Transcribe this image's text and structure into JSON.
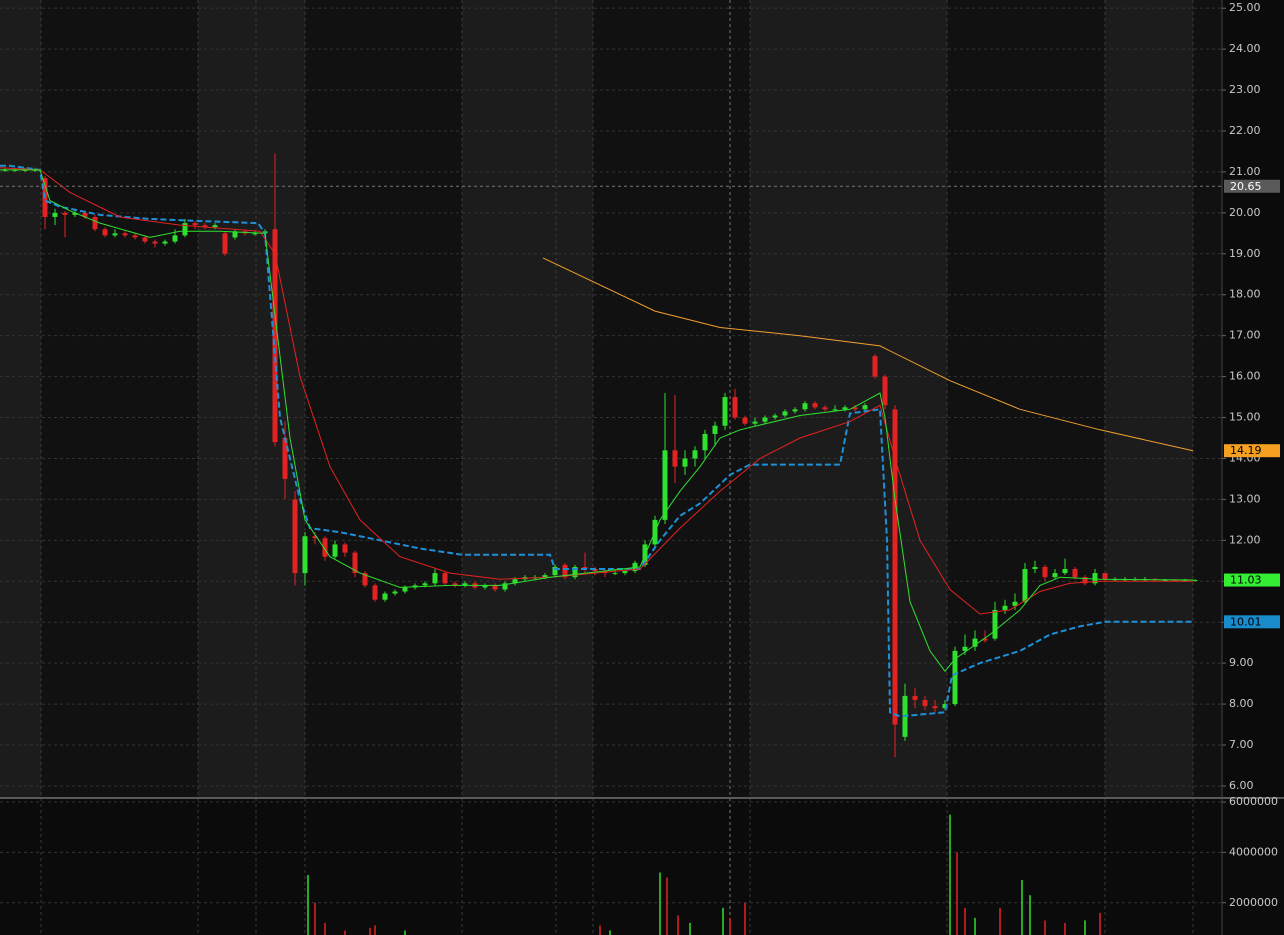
{
  "chart_data": [
    {
      "type": "candlestick",
      "up_color": "#2fe02f",
      "down_color": "#e52222",
      "xlim": [
        -0.5,
        121.7
      ],
      "ylim": [
        5.73,
        25.2
      ],
      "yticks": [
        {
          "value": 6,
          "label": "6.00"
        },
        {
          "value": 7,
          "label": "7.00"
        },
        {
          "value": 8,
          "label": "8.00"
        },
        {
          "value": 9,
          "label": "9.00"
        },
        {
          "value": 10,
          "label": "10.00"
        },
        {
          "value": 11,
          "label": "11.00"
        },
        {
          "value": 12,
          "label": "12.00"
        },
        {
          "value": 13,
          "label": "13.00"
        },
        {
          "value": 14,
          "label": "14.00"
        },
        {
          "value": 15,
          "label": "15.00"
        },
        {
          "value": 16,
          "label": "16.00"
        },
        {
          "value": 17,
          "label": "17.00"
        },
        {
          "value": 18,
          "label": "18.00"
        },
        {
          "value": 19,
          "label": "19.00"
        },
        {
          "value": 20,
          "label": "20.00"
        },
        {
          "value": 21,
          "label": "21.00"
        },
        {
          "value": 22,
          "label": "22.00"
        },
        {
          "value": 23,
          "label": "23.00"
        },
        {
          "value": 24,
          "label": "24.00"
        },
        {
          "value": 25,
          "label": "25.00"
        }
      ],
      "grid": true,
      "ohlc": [
        [
          21.05,
          21.1,
          21.0,
          21.05
        ],
        [
          21.05,
          21.1,
          21.0,
          21.05
        ],
        [
          21.05,
          21.1,
          21.0,
          21.05
        ],
        [
          21.05,
          21.1,
          21.0,
          21.05
        ],
        [
          20.85,
          20.9,
          19.6,
          19.9
        ],
        [
          19.9,
          20.1,
          19.7,
          20.0
        ],
        [
          20.0,
          20.05,
          19.4,
          19.95
        ],
        [
          19.95,
          20.1,
          19.9,
          20.0
        ],
        [
          20.0,
          20.05,
          19.85,
          19.9
        ],
        [
          19.9,
          19.95,
          19.55,
          19.6
        ],
        [
          19.6,
          19.65,
          19.4,
          19.45
        ],
        [
          19.45,
          19.6,
          19.4,
          19.5
        ],
        [
          19.5,
          19.55,
          19.4,
          19.45
        ],
        [
          19.45,
          19.5,
          19.35,
          19.4
        ],
        [
          19.4,
          19.45,
          19.25,
          19.3
        ],
        [
          19.3,
          19.35,
          19.15,
          19.25
        ],
        [
          19.25,
          19.35,
          19.2,
          19.3
        ],
        [
          19.3,
          19.6,
          19.25,
          19.45
        ],
        [
          19.45,
          19.85,
          19.4,
          19.75
        ],
        [
          19.75,
          19.8,
          19.6,
          19.7
        ],
        [
          19.7,
          19.75,
          19.6,
          19.65
        ],
        [
          19.65,
          19.75,
          19.6,
          19.7
        ],
        [
          19.5,
          19.55,
          18.95,
          19.0
        ],
        [
          19.4,
          19.6,
          19.35,
          19.55
        ],
        [
          19.55,
          19.6,
          19.45,
          19.5
        ],
        [
          19.5,
          19.55,
          19.45,
          19.5
        ],
        [
          19.5,
          19.6,
          19.45,
          19.55
        ],
        [
          19.6,
          21.45,
          14.3,
          14.4
        ],
        [
          14.5,
          14.9,
          13.0,
          13.5
        ],
        [
          13.0,
          13.2,
          10.9,
          11.2
        ],
        [
          11.2,
          12.2,
          10.9,
          12.1
        ],
        [
          12.1,
          12.2,
          11.9,
          12.05
        ],
        [
          12.05,
          12.1,
          11.5,
          11.6
        ],
        [
          11.6,
          12.0,
          11.55,
          11.9
        ],
        [
          11.9,
          11.95,
          11.6,
          11.7
        ],
        [
          11.7,
          11.75,
          11.1,
          11.2
        ],
        [
          11.2,
          11.25,
          10.85,
          10.9
        ],
        [
          10.9,
          10.95,
          10.5,
          10.55
        ],
        [
          10.55,
          10.75,
          10.5,
          10.7
        ],
        [
          10.7,
          10.8,
          10.65,
          10.75
        ],
        [
          10.75,
          10.9,
          10.7,
          10.85
        ],
        [
          10.85,
          10.95,
          10.8,
          10.9
        ],
        [
          10.9,
          11.0,
          10.85,
          10.95
        ],
        [
          10.95,
          11.3,
          10.9,
          11.2
        ],
        [
          11.2,
          11.25,
          10.9,
          10.95
        ],
        [
          10.95,
          11.0,
          10.85,
          10.9
        ],
        [
          10.9,
          11.0,
          10.85,
          10.95
        ],
        [
          10.95,
          11.0,
          10.8,
          10.85
        ],
        [
          10.85,
          10.95,
          10.8,
          10.9
        ],
        [
          10.9,
          10.95,
          10.75,
          10.8
        ],
        [
          10.8,
          11.0,
          10.75,
          10.95
        ],
        [
          10.95,
          11.1,
          10.9,
          11.05
        ],
        [
          11.05,
          11.15,
          11.0,
          11.1
        ],
        [
          11.1,
          11.15,
          11.05,
          11.1
        ],
        [
          11.1,
          11.2,
          11.05,
          11.15
        ],
        [
          11.15,
          11.4,
          11.1,
          11.35
        ],
        [
          11.4,
          11.45,
          11.05,
          11.1
        ],
        [
          11.1,
          11.4,
          11.05,
          11.35
        ],
        [
          11.35,
          11.7,
          11.2,
          11.3
        ],
        [
          11.3,
          11.35,
          11.15,
          11.25
        ],
        [
          11.25,
          11.3,
          11.1,
          11.2
        ],
        [
          11.2,
          11.3,
          11.15,
          11.2
        ],
        [
          11.2,
          11.3,
          11.15,
          11.25
        ],
        [
          11.25,
          11.5,
          11.2,
          11.45
        ],
        [
          11.4,
          12.0,
          11.35,
          11.9
        ],
        [
          11.9,
          12.6,
          11.8,
          12.5
        ],
        [
          12.5,
          15.6,
          12.4,
          14.2
        ],
        [
          14.2,
          15.55,
          13.4,
          13.8
        ],
        [
          13.8,
          14.2,
          13.6,
          14.0
        ],
        [
          14.0,
          14.3,
          13.8,
          14.2
        ],
        [
          14.2,
          14.7,
          14.0,
          14.6
        ],
        [
          14.6,
          14.9,
          14.3,
          14.8
        ],
        [
          14.8,
          15.6,
          14.7,
          15.5
        ],
        [
          15.5,
          15.7,
          14.95,
          15.0
        ],
        [
          15.0,
          15.05,
          14.8,
          14.85
        ],
        [
          14.85,
          15.0,
          14.8,
          14.9
        ],
        [
          14.9,
          15.05,
          14.85,
          15.0
        ],
        [
          15.0,
          15.1,
          14.95,
          15.05
        ],
        [
          15.05,
          15.2,
          15.0,
          15.15
        ],
        [
          15.15,
          15.25,
          15.1,
          15.2
        ],
        [
          15.2,
          15.4,
          15.15,
          15.35
        ],
        [
          15.35,
          15.4,
          15.2,
          15.25
        ],
        [
          15.25,
          15.3,
          15.15,
          15.2
        ],
        [
          15.2,
          15.3,
          15.15,
          15.2
        ],
        [
          15.2,
          15.3,
          15.15,
          15.25
        ],
        [
          15.25,
          15.3,
          15.15,
          15.2
        ],
        [
          15.2,
          15.35,
          15.15,
          15.3
        ],
        [
          16.5,
          16.55,
          15.95,
          16.0
        ],
        [
          16.0,
          16.05,
          15.2,
          15.3
        ],
        [
          15.2,
          15.3,
          6.7,
          7.5
        ],
        [
          7.2,
          8.5,
          7.1,
          8.2
        ],
        [
          8.2,
          8.4,
          7.9,
          8.1
        ],
        [
          8.1,
          8.2,
          7.85,
          7.95
        ],
        [
          7.95,
          8.1,
          7.8,
          7.9
        ],
        [
          7.9,
          8.1,
          7.85,
          8.0
        ],
        [
          8.0,
          9.4,
          7.95,
          9.3
        ],
        [
          9.3,
          9.7,
          9.2,
          9.4
        ],
        [
          9.4,
          9.8,
          9.3,
          9.6
        ],
        [
          9.6,
          9.8,
          9.5,
          9.55
        ],
        [
          9.6,
          10.5,
          9.55,
          10.3
        ],
        [
          10.3,
          10.55,
          10.2,
          10.4
        ],
        [
          10.4,
          10.7,
          10.3,
          10.5
        ],
        [
          10.5,
          11.45,
          10.45,
          11.3
        ],
        [
          11.3,
          11.5,
          11.2,
          11.35
        ],
        [
          11.35,
          11.4,
          11.0,
          11.1
        ],
        [
          11.1,
          11.3,
          11.05,
          11.2
        ],
        [
          11.2,
          11.55,
          11.15,
          11.3
        ],
        [
          11.3,
          11.35,
          11.05,
          11.1
        ],
        [
          11.1,
          11.15,
          10.9,
          10.95
        ],
        [
          10.95,
          11.3,
          10.9,
          11.2
        ],
        [
          11.2,
          11.2,
          11.0,
          11.05
        ],
        [
          11.05,
          11.1,
          11.0,
          11.05
        ],
        [
          11.05,
          11.1,
          11.0,
          11.05
        ],
        [
          11.05,
          11.1,
          11.0,
          11.05
        ],
        [
          11.05,
          11.1,
          11.0,
          11.05
        ],
        [
          11.05,
          11.08,
          11.0,
          11.03
        ],
        [
          11.03,
          11.06,
          11.0,
          11.03
        ],
        [
          11.03,
          11.05,
          11.0,
          11.02
        ],
        [
          11.02,
          11.06,
          11.0,
          11.03
        ],
        [
          11.03,
          11.05,
          11.0,
          11.03
        ]
      ],
      "lines": [
        {
          "color": "#f0a030",
          "dashed": false,
          "x": [
            53.8,
            65,
            71.5,
            79.5,
            87.5,
            94.5,
            101.5,
            109.5,
            118.8
          ],
          "values": [
            18.9,
            17.6,
            17.2,
            17.0,
            16.75,
            15.9,
            15.2,
            14.7,
            14.19
          ]
        },
        {
          "color": "#1e90d8",
          "dashed": true,
          "x": [
            -0.5,
            0.5,
            3.5,
            4,
            5.5,
            9.5,
            14.5,
            19.5,
            25.3,
            26,
            26.5,
            27.5,
            28.5,
            29.5,
            30.5,
            33.5,
            37.5,
            41.5,
            45.7,
            54.5,
            55,
            63.5,
            65.5,
            67.5,
            69.5,
            72.5,
            74.5,
            83.5,
            84.5,
            87.5,
            88.2,
            88.5,
            89.5,
            94,
            94.7,
            97.5,
            101.5,
            104.5,
            107.5,
            110,
            118.8
          ],
          "values": [
            21.15,
            21.15,
            21.05,
            20.3,
            20.15,
            19.95,
            19.85,
            19.8,
            19.75,
            19.5,
            18.0,
            15.0,
            14.0,
            13.0,
            12.3,
            12.2,
            12.0,
            11.8,
            11.65,
            11.65,
            11.3,
            11.3,
            12.0,
            12.6,
            12.9,
            13.6,
            13.85,
            13.85,
            15.1,
            15.2,
            12.0,
            7.8,
            7.7,
            7.8,
            8.7,
            9.0,
            9.3,
            9.7,
            9.9,
            10.01,
            10.01
          ]
        },
        {
          "color": "#e52222",
          "dashed": false,
          "x": [
            -0.5,
            3.5,
            6.5,
            11.5,
            17.5,
            25.5,
            27,
            29.5,
            32.5,
            35.5,
            39.5,
            44.5,
            49.5,
            54.5,
            63.5,
            67.5,
            71.5,
            75.5,
            79.5,
            84.5,
            87.5,
            89,
            91.5,
            94.5,
            97.5,
            100.5,
            103.5,
            106.5,
            109.5,
            118.8
          ],
          "values": [
            21.1,
            21.05,
            20.5,
            19.9,
            19.7,
            19.55,
            19.0,
            16.0,
            13.8,
            12.5,
            11.6,
            11.2,
            11.05,
            11.1,
            11.3,
            12.3,
            13.2,
            14.0,
            14.5,
            14.9,
            15.3,
            14.0,
            12.0,
            10.8,
            10.2,
            10.3,
            10.75,
            10.95,
            11.0,
            11.0
          ]
        },
        {
          "color": "#2fe02f",
          "dashed": false,
          "x": [
            -0.5,
            3.5,
            4.5,
            6.5,
            9.5,
            14.5,
            17.5,
            21.5,
            26,
            27,
            28.5,
            30,
            32.5,
            35.5,
            39.5,
            44.5,
            49.5,
            54.5,
            63.5,
            65.5,
            67.5,
            69.5,
            71.5,
            73.5,
            79.5,
            84.5,
            87.5,
            88,
            89,
            90.5,
            92.5,
            94,
            95,
            98.5,
            101.5,
            103.5,
            105.5,
            109.5,
            118.8
          ],
          "values": [
            21.05,
            21.05,
            20.3,
            20.05,
            19.75,
            19.4,
            19.55,
            19.55,
            19.5,
            17.5,
            14.5,
            12.5,
            11.6,
            11.2,
            10.85,
            10.9,
            10.9,
            11.1,
            11.35,
            12.5,
            13.2,
            13.8,
            14.5,
            14.7,
            15.05,
            15.2,
            15.6,
            15.0,
            13.0,
            10.5,
            9.3,
            8.8,
            9.1,
            9.7,
            10.3,
            10.9,
            11.1,
            11.05,
            11.03
          ]
        }
      ],
      "markers": [
        {
          "value": 20.65,
          "color": "#5a5a5a",
          "text_color": "#ffffff"
        },
        {
          "value": 14.19,
          "color": "#f5a020",
          "text_color": "#000000"
        },
        {
          "value": 11.03,
          "color": "#33ee33",
          "text_color": "#000000"
        },
        {
          "value": 10.01,
          "color": "#1a8ccc",
          "text_color": "#000000"
        }
      ]
    },
    {
      "type": "bar",
      "xlim": [
        -0.5,
        121.7
      ],
      "ylim": [
        720000,
        6120000
      ],
      "yticks": [
        2000000,
        4000000,
        6000000
      ],
      "grid": true,
      "x": [
        30.3,
        31,
        32,
        34,
        36.5,
        37,
        40,
        59.5,
        60.5,
        65.5,
        66.2,
        67.3,
        68.5,
        71.8,
        72.5,
        74,
        94.5,
        95.2,
        96,
        97,
        99.5,
        101.7,
        102.5,
        104,
        106,
        108,
        109.5
      ],
      "values": [
        3100000,
        2000000,
        1200000,
        900000,
        1000000,
        1100000,
        900000,
        1100000,
        900000,
        3200000,
        3000000,
        1500000,
        1200000,
        1800000,
        1400000,
        2000000,
        5500000,
        4000000,
        1800000,
        1400000,
        1800000,
        2900000,
        2300000,
        1300000,
        1200000,
        1300000,
        1600000
      ],
      "colors": [
        "#2fe02f",
        "#e52222",
        "#e52222",
        "#e52222",
        "#e52222",
        "#e52222",
        "#2fe02f",
        "#e52222",
        "#2fe02f",
        "#2fe02f",
        "#e52222",
        "#e52222",
        "#2fe02f",
        "#2fe02f",
        "#e52222",
        "#e52222",
        "#2fe02f",
        "#e52222",
        "#e52222",
        "#2fe02f",
        "#e52222",
        "#2fe02f",
        "#2fe02f",
        "#e52222",
        "#e52222",
        "#2fe02f",
        "#e52222"
      ]
    }
  ]
}
